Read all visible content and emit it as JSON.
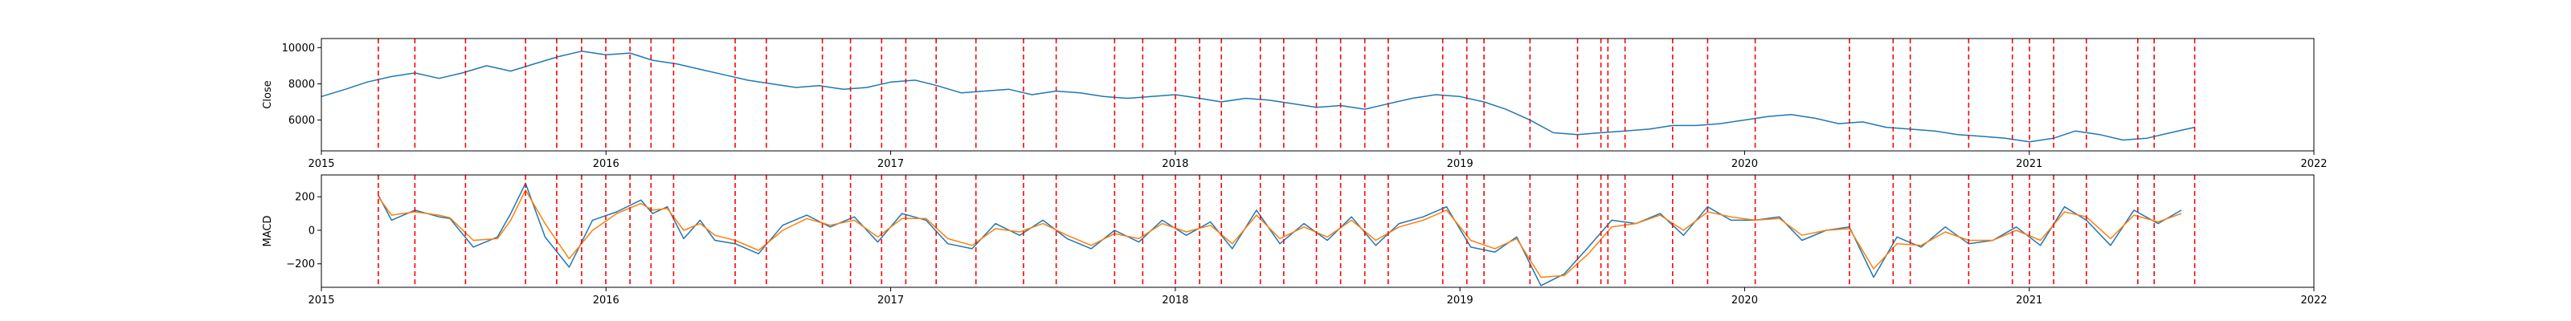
{
  "chart_data": [
    {
      "type": "line",
      "ylabel": "Close",
      "x_range": [
        "2015-01-01",
        "2022-01-01"
      ],
      "x_tick_labels": [
        "2015",
        "2016",
        "2017",
        "2018",
        "2019",
        "2020",
        "2021",
        "2022"
      ],
      "ylim": [
        4300,
        10500
      ],
      "y_ticks": [
        6000,
        8000,
        10000
      ],
      "y_tick_labels": [
        "6000",
        "8000",
        "10000"
      ],
      "grid": false,
      "series": [
        {
          "color": "#1f77b4",
          "x": [
            "2015-01-01",
            "2015-02-01",
            "2015-03-01",
            "2015-04-01",
            "2015-05-01",
            "2015-06-01",
            "2015-07-01",
            "2015-08-01",
            "2015-09-01",
            "2015-10-01",
            "2015-11-01",
            "2015-12-01",
            "2016-01-01",
            "2016-02-01",
            "2016-03-01",
            "2016-04-01",
            "2016-05-01",
            "2016-06-01",
            "2016-07-01",
            "2016-08-01",
            "2016-09-01",
            "2016-10-01",
            "2016-11-01",
            "2016-12-01",
            "2017-01-01",
            "2017-02-01",
            "2017-03-01",
            "2017-04-01",
            "2017-05-01",
            "2017-06-01",
            "2017-07-01",
            "2017-08-01",
            "2017-09-01",
            "2017-10-01",
            "2017-11-01",
            "2017-12-01",
            "2018-01-01",
            "2018-02-01",
            "2018-03-01",
            "2018-04-01",
            "2018-05-01",
            "2018-06-01",
            "2018-07-01",
            "2018-08-01",
            "2018-09-01",
            "2018-10-01",
            "2018-11-01",
            "2018-12-01",
            "2019-01-01",
            "2019-02-01",
            "2019-03-01",
            "2019-04-01",
            "2019-05-01",
            "2019-06-01",
            "2019-07-01",
            "2019-08-01",
            "2019-09-01",
            "2019-10-01",
            "2019-11-01",
            "2019-12-01",
            "2020-01-01",
            "2020-02-01",
            "2020-03-01",
            "2020-04-01",
            "2020-05-01",
            "2020-06-01",
            "2020-07-01",
            "2020-08-01",
            "2020-09-01",
            "2020-10-01",
            "2020-11-01",
            "2020-12-01",
            "2021-01-01",
            "2021-02-01",
            "2021-03-01",
            "2021-04-01",
            "2021-05-01",
            "2021-06-01",
            "2021-07-01",
            "2021-08-01"
          ],
          "values": [
            7300,
            7700,
            8100,
            8400,
            8600,
            8300,
            8600,
            9000,
            8700,
            9100,
            9500,
            9800,
            9600,
            9700,
            9300,
            9100,
            8800,
            8500,
            8200,
            8000,
            7800,
            7900,
            7700,
            7800,
            8100,
            8200,
            7900,
            7500,
            7600,
            7700,
            7400,
            7600,
            7500,
            7300,
            7200,
            7300,
            7400,
            7200,
            7000,
            7200,
            7100,
            6900,
            6700,
            6800,
            6600,
            6900,
            7200,
            7400,
            7300,
            7000,
            6600,
            6000,
            5300,
            5200,
            5300,
            5400,
            5500,
            5700,
            5700,
            5800,
            6000,
            6200,
            6300,
            6100,
            5800,
            5900,
            5600,
            5500,
            5400,
            5200,
            5100,
            5000,
            4800,
            5000,
            5400,
            5200,
            4900,
            5000,
            5300,
            5600
          ]
        }
      ]
    },
    {
      "type": "line",
      "ylabel": "MACD",
      "x_range": [
        "2015-01-01",
        "2022-01-01"
      ],
      "x_tick_labels": [
        "2015",
        "2016",
        "2017",
        "2018",
        "2019",
        "2020",
        "2021",
        "2022"
      ],
      "ylim": [
        -340,
        330
      ],
      "y_ticks": [
        -200,
        0,
        200
      ],
      "y_tick_labels": [
        "−200",
        "0",
        "200"
      ],
      "grid": false,
      "series": [
        {
          "color": "#1f77b4",
          "x": [
            "2015-03-15",
            "2015-04-01",
            "2015-05-01",
            "2015-06-01",
            "2015-06-15",
            "2015-07-15",
            "2015-08-15",
            "2015-09-01",
            "2015-09-20",
            "2015-10-15",
            "2015-11-15",
            "2015-12-15",
            "2016-01-15",
            "2016-02-15",
            "2016-03-01",
            "2016-03-20",
            "2016-04-10",
            "2016-05-01",
            "2016-05-20",
            "2016-06-15",
            "2016-07-15",
            "2016-08-15",
            "2016-09-15",
            "2016-10-15",
            "2016-11-15",
            "2016-12-15",
            "2017-01-15",
            "2017-02-15",
            "2017-03-15",
            "2017-04-15",
            "2017-05-15",
            "2017-06-15",
            "2017-07-15",
            "2017-08-15",
            "2017-09-15",
            "2017-10-15",
            "2017-11-15",
            "2017-12-15",
            "2018-01-15",
            "2018-02-15",
            "2018-03-15",
            "2018-04-15",
            "2018-05-15",
            "2018-06-15",
            "2018-07-15",
            "2018-08-15",
            "2018-09-15",
            "2018-10-15",
            "2018-11-15",
            "2018-12-15",
            "2019-01-15",
            "2019-02-15",
            "2019-03-15",
            "2019-04-15",
            "2019-05-15",
            "2019-06-15",
            "2019-07-15",
            "2019-08-15",
            "2019-09-15",
            "2019-10-15",
            "2019-11-15",
            "2019-12-15",
            "2020-01-15",
            "2020-02-15",
            "2020-03-15",
            "2020-04-15",
            "2020-05-15",
            "2020-06-15",
            "2020-07-15",
            "2020-08-15",
            "2020-09-15",
            "2020-10-15",
            "2020-11-15",
            "2020-12-15",
            "2021-01-15",
            "2021-02-15",
            "2021-03-15",
            "2021-04-15",
            "2021-05-15",
            "2021-06-15",
            "2021-07-15"
          ],
          "values": [
            210,
            60,
            120,
            80,
            70,
            -100,
            -40,
            100,
            280,
            -40,
            -220,
            60,
            110,
            180,
            100,
            140,
            -50,
            60,
            -60,
            -80,
            -140,
            30,
            90,
            20,
            80,
            -70,
            100,
            60,
            -80,
            -110,
            40,
            -30,
            60,
            -50,
            -110,
            0,
            -70,
            60,
            -30,
            50,
            -110,
            120,
            -80,
            40,
            -60,
            80,
            -90,
            40,
            80,
            140,
            -100,
            -130,
            -40,
            -330,
            -260,
            -100,
            60,
            40,
            100,
            -30,
            140,
            60,
            60,
            80,
            -60,
            0,
            20,
            -280,
            -40,
            -100,
            20,
            -80,
            -60,
            20,
            -90,
            140,
            60,
            -90,
            120,
            40,
            120
          ]
        },
        {
          "color": "#ff7f0e",
          "x": [
            "2015-03-15",
            "2015-04-01",
            "2015-05-01",
            "2015-06-01",
            "2015-06-15",
            "2015-07-15",
            "2015-08-15",
            "2015-09-01",
            "2015-09-20",
            "2015-10-15",
            "2015-11-15",
            "2015-12-15",
            "2016-01-15",
            "2016-02-15",
            "2016-03-01",
            "2016-03-20",
            "2016-04-10",
            "2016-05-01",
            "2016-05-20",
            "2016-06-15",
            "2016-07-15",
            "2016-08-15",
            "2016-09-15",
            "2016-10-15",
            "2016-11-15",
            "2016-12-15",
            "2017-01-15",
            "2017-02-15",
            "2017-03-15",
            "2017-04-15",
            "2017-05-15",
            "2017-06-15",
            "2017-07-15",
            "2017-08-15",
            "2017-09-15",
            "2017-10-15",
            "2017-11-15",
            "2017-12-15",
            "2018-01-15",
            "2018-02-15",
            "2018-03-15",
            "2018-04-15",
            "2018-05-15",
            "2018-06-15",
            "2018-07-15",
            "2018-08-15",
            "2018-09-15",
            "2018-10-15",
            "2018-11-15",
            "2018-12-15",
            "2019-01-15",
            "2019-02-15",
            "2019-03-15",
            "2019-04-15",
            "2019-05-15",
            "2019-06-15",
            "2019-07-15",
            "2019-08-15",
            "2019-09-15",
            "2019-10-15",
            "2019-11-15",
            "2019-12-15",
            "2020-01-15",
            "2020-02-15",
            "2020-03-15",
            "2020-04-15",
            "2020-05-15",
            "2020-06-15",
            "2020-07-15",
            "2020-08-15",
            "2020-09-15",
            "2020-10-15",
            "2020-11-15",
            "2020-12-15",
            "2021-01-15",
            "2021-02-15",
            "2021-03-15",
            "2021-04-15",
            "2021-05-15",
            "2021-06-15",
            "2021-07-15"
          ],
          "values": [
            200,
            90,
            110,
            90,
            75,
            -60,
            -50,
            60,
            240,
            40,
            -170,
            0,
            100,
            160,
            120,
            130,
            0,
            40,
            -30,
            -60,
            -120,
            0,
            70,
            30,
            60,
            -40,
            70,
            70,
            -50,
            -90,
            10,
            -10,
            40,
            -30,
            -90,
            -20,
            -50,
            40,
            -10,
            30,
            -80,
            90,
            -50,
            20,
            -40,
            60,
            -60,
            20,
            60,
            120,
            -60,
            -110,
            -50,
            -280,
            -270,
            -140,
            20,
            40,
            90,
            0,
            110,
            80,
            60,
            70,
            -30,
            0,
            10,
            -230,
            -80,
            -90,
            -10,
            -60,
            -60,
            0,
            -60,
            110,
            80,
            -50,
            90,
            50,
            100
          ]
        }
      ]
    }
  ],
  "event_markers": [
    "2015-03-15",
    "2015-05-01",
    "2015-07-05",
    "2015-09-20",
    "2015-10-30",
    "2015-12-01",
    "2016-01-01",
    "2016-02-01",
    "2016-02-28",
    "2016-03-28",
    "2016-06-15",
    "2016-07-25",
    "2016-10-05",
    "2016-11-10",
    "2016-12-20",
    "2017-01-20",
    "2017-02-28",
    "2017-04-20",
    "2017-06-20",
    "2017-08-01",
    "2017-10-15",
    "2017-11-20",
    "2018-01-01",
    "2018-02-01",
    "2018-03-01",
    "2018-04-20",
    "2018-05-20",
    "2018-07-01",
    "2018-08-01",
    "2018-09-01",
    "2018-10-01",
    "2018-12-10",
    "2019-01-10",
    "2019-02-01",
    "2019-04-01",
    "2019-06-01",
    "2019-07-01",
    "2019-07-10",
    "2019-08-01",
    "2019-10-01",
    "2019-11-15",
    "2020-01-15",
    "2020-05-15",
    "2020-07-10",
    "2020-08-01",
    "2020-10-15",
    "2020-12-10",
    "2021-01-01",
    "2021-02-01",
    "2021-03-15",
    "2021-05-20",
    "2021-06-10",
    "2021-08-01"
  ],
  "marker_color": "#ff0000"
}
